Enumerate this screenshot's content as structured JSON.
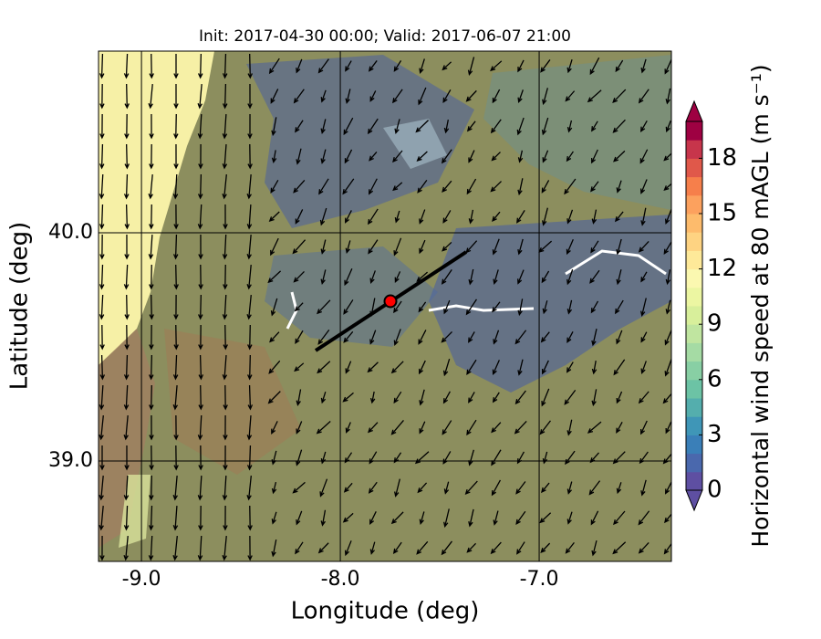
{
  "chart_data": {
    "type": "map",
    "title": "Init: 2017-04-30 00:00; Valid: 2017-06-07 21:00",
    "x_label": "Longitude (deg)",
    "y_label": "Latitude (deg)",
    "xlim": [
      -9.216,
      -6.335
    ],
    "ylim": [
      38.56,
      40.796
    ],
    "xticks": [
      {
        "value": -9,
        "label": "-9.0"
      },
      {
        "value": -8,
        "label": "-8.0"
      },
      {
        "value": -7,
        "label": "-7.0"
      }
    ],
    "yticks": [
      {
        "value": 39,
        "label": "39.0"
      },
      {
        "value": 40,
        "label": "40.0"
      }
    ],
    "grid": true,
    "marker": {
      "lon": -7.748,
      "lat": 39.7,
      "color": "#ff0000"
    },
    "transect": {
      "lon": [
        -8.124,
        -7.367
      ],
      "lat": [
        39.484,
        39.916
      ],
      "color": "#000000"
    },
    "colorbar": {
      "label": "Horizontal wind speed at 80 mAGL (m s⁻¹)",
      "lim": [
        0,
        20
      ],
      "ticks": [
        0,
        3,
        6,
        9,
        12,
        15,
        18
      ],
      "colors": [
        "#5e4fa2",
        "#4a68ad",
        "#3a7fb8",
        "#3f96b7",
        "#54aead",
        "#6cc3a5",
        "#88cfa4",
        "#a5dba4",
        "#c0e5a0",
        "#d8ef9b",
        "#ecf6a2",
        "#fbf8b0",
        "#fee999",
        "#fed382",
        "#fdbb6c",
        "#fca15e",
        "#f67f4b",
        "#e0584a",
        "#c7354b",
        "#9e0142"
      ]
    }
  }
}
